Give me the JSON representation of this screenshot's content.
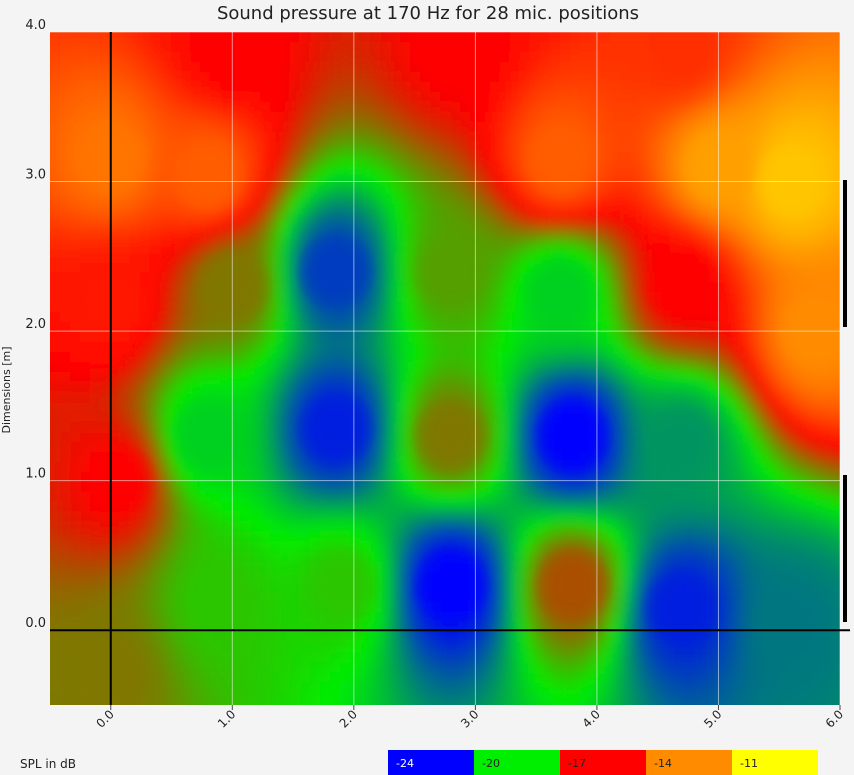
{
  "chart_data": {
    "type": "heatmap",
    "title": "Sound pressure at 170 Hz for 28 mic. positions",
    "ylabel": "Dimensions [m]",
    "xlim": [
      -0.5,
      6.0
    ],
    "ylim": [
      -0.5,
      4.0
    ],
    "xticks": [
      {
        "value": 0,
        "label": "0.0"
      },
      {
        "value": 1,
        "label": "1.0"
      },
      {
        "value": 2,
        "label": "2.0"
      },
      {
        "value": 3,
        "label": "3.0"
      },
      {
        "value": 4,
        "label": "4.0"
      },
      {
        "value": 5,
        "label": "5.0"
      },
      {
        "value": 6,
        "label": "6.0"
      }
    ],
    "yticks": [
      {
        "value": 0,
        "label": "0.0"
      },
      {
        "value": 1,
        "label": "1.0"
      },
      {
        "value": 2,
        "label": "2.0"
      },
      {
        "value": 3,
        "label": "3.0"
      },
      {
        "value": 4,
        "label": "4.0"
      }
    ],
    "grid": true,
    "points": {
      "x": [
        0.0,
        0.8,
        3.7,
        5.6,
        1.85,
        3.7,
        0.8,
        1.85,
        2.8,
        3.8,
        4.7,
        0.05,
        2.8,
        3.8,
        4.7,
        5.6,
        0.0,
        5.8,
        1.0,
        2.8,
        4.7,
        0.0,
        1.9,
        0.9,
        4.7,
        2.8,
        5.0,
        1.0
      ],
      "y": [
        3.15,
        3.05,
        3.15,
        3.0,
        2.4,
        2.25,
        1.3,
        1.35,
        1.3,
        1.3,
        1.25,
        1.0,
        0.3,
        0.3,
        0.15,
        0.05,
        2.2,
        2.0,
        3.9,
        3.9,
        3.9,
        -0.3,
        0.3,
        0.2,
        2.3,
        2.4,
        3.1,
        2.3
      ],
      "values": [
        -14.5,
        -15,
        -15,
        -12.5,
        -23,
        -20.5,
        -20.5,
        -23.5,
        -18.5,
        -24,
        -21.5,
        -17,
        -24,
        -18,
        -23.5,
        -22,
        -16.5,
        -14,
        -17,
        -17,
        -16,
        -18.5,
        -19.5,
        -19.5,
        -17,
        -19,
        -13.5,
        -18.5
      ]
    },
    "colorbar": {
      "title": "SPL in dB",
      "values": [
        -24,
        -20,
        -17,
        -14,
        -11
      ],
      "colors": [
        "#0000ff",
        "#00ee00",
        "#ff0000",
        "#ff8c00",
        "#ffff00"
      ]
    }
  }
}
